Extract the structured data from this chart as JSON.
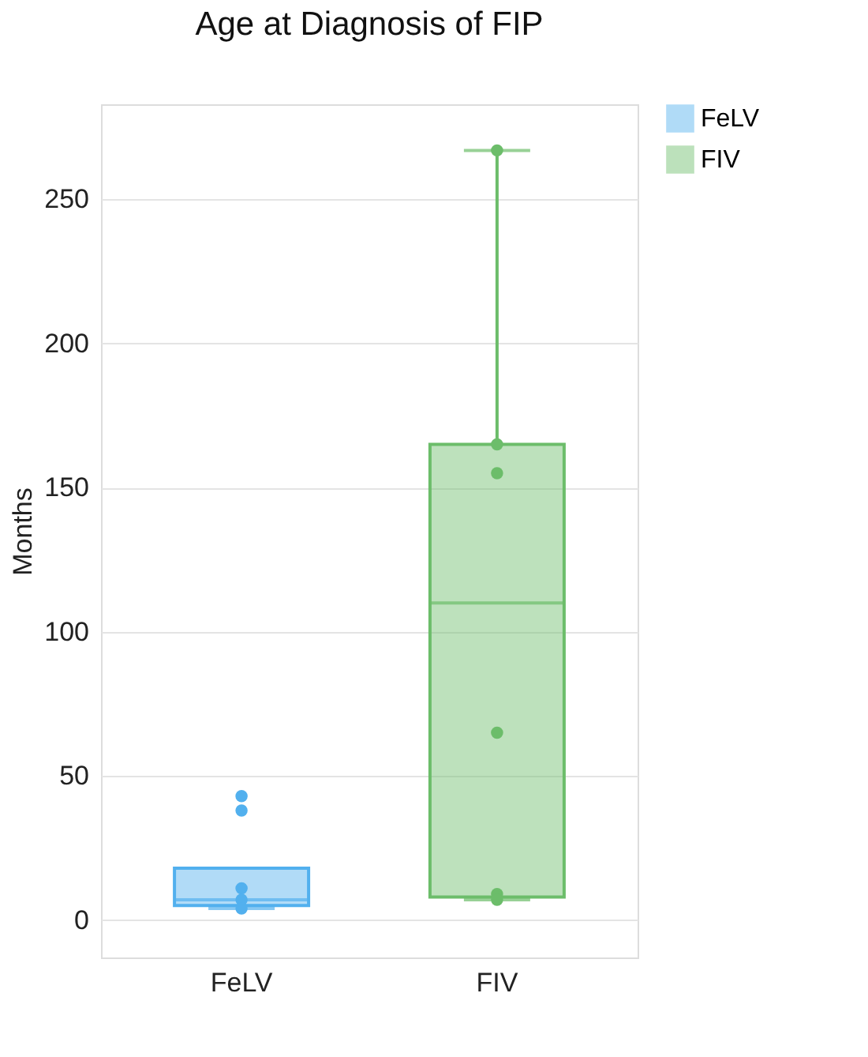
{
  "chart_data": {
    "type": "box",
    "title": "Age at Diagnosis of FIP",
    "ylabel": "Months",
    "categories": [
      "FeLV",
      "FIV"
    ],
    "colors": [
      "#52b0ee",
      "#6cbd6a"
    ],
    "boxes": [
      {
        "low": 4,
        "q1": 5,
        "median": 7,
        "q3": 18,
        "high": 18
      },
      {
        "low": 7,
        "q1": 8,
        "median": 110,
        "q3": 165,
        "high": 267
      }
    ],
    "series": [
      {
        "type": "scatter",
        "name": "FeLV",
        "color": "#52b0ee",
        "x": [
          "FeLV",
          "FeLV",
          "FeLV",
          "FeLV",
          "FeLV"
        ],
        "values": [
          43,
          38,
          11,
          7,
          4
        ]
      },
      {
        "type": "scatter",
        "name": "FIV",
        "color": "#6cbd6a",
        "x": [
          "FIV",
          "FIV",
          "FIV",
          "FIV",
          "FIV",
          "FIV"
        ],
        "values": [
          267,
          165,
          155,
          65,
          9,
          7
        ]
      }
    ],
    "ylim": [
      -13,
      283
    ],
    "yticks": [
      0,
      50,
      100,
      150,
      200,
      250
    ],
    "grid": "y",
    "legend": "top right",
    "marker": "circle"
  }
}
